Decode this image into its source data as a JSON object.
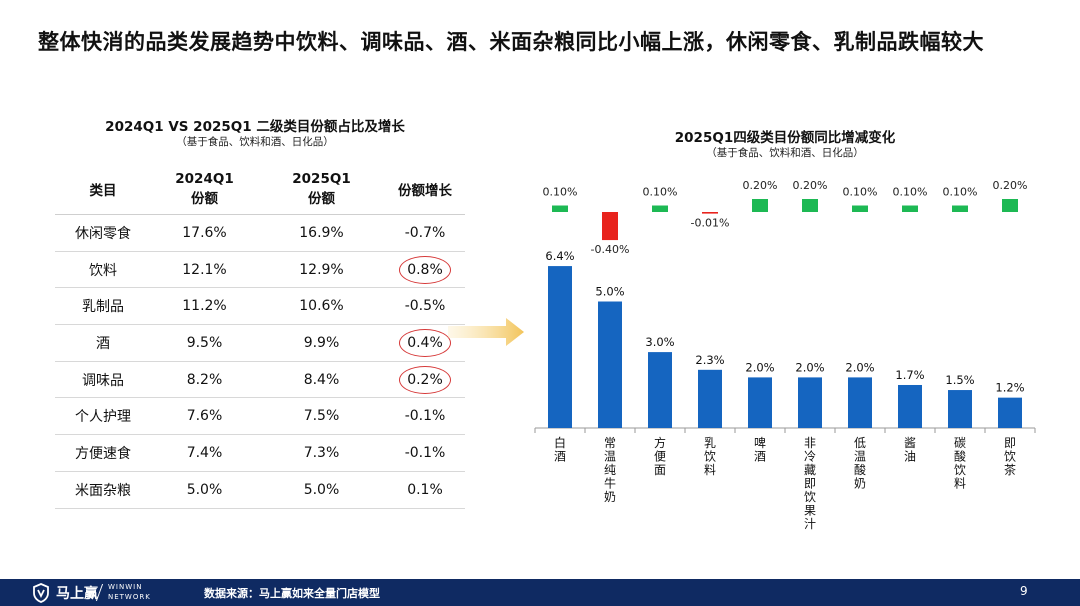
{
  "title": "整体快消的品类发展趋势中饮料、调味品、酒、米面杂粮同比小幅上涨，休闲零食、乳制品跌幅较大",
  "table": {
    "title": "2024Q1 VS 2025Q1 二级类目份额占比及增长",
    "subtitle": "（基于食品、饮料和酒、日化品）",
    "headers": [
      "类目",
      "2024Q1\n份额",
      "2025Q1\n份额",
      "份额增长"
    ],
    "rows": [
      {
        "cells": [
          "休闲零食",
          "17.6%",
          "16.9%",
          "-0.7%"
        ],
        "highlight": false
      },
      {
        "cells": [
          "饮料",
          "12.1%",
          "12.9%",
          "0.8%"
        ],
        "highlight": true
      },
      {
        "cells": [
          "乳制品",
          "11.2%",
          "10.6%",
          "-0.5%"
        ],
        "highlight": false
      },
      {
        "cells": [
          "酒",
          "9.5%",
          "9.9%",
          "0.4%"
        ],
        "highlight": true
      },
      {
        "cells": [
          "调味品",
          "8.2%",
          "8.4%",
          "0.2%"
        ],
        "highlight": true
      },
      {
        "cells": [
          "个人护理",
          "7.6%",
          "7.5%",
          "-0.1%"
        ],
        "highlight": false
      },
      {
        "cells": [
          "方便速食",
          "7.4%",
          "7.3%",
          "-0.1%"
        ],
        "highlight": false
      },
      {
        "cells": [
          "米面杂粮",
          "5.0%",
          "5.0%",
          "0.1%"
        ],
        "highlight": false
      }
    ]
  },
  "chart_data": {
    "type": "bar",
    "title": "2025Q1四级类目份额同比增减变化",
    "subtitle": "（基于食品、饮料和酒、日化品）",
    "categories": [
      "白酒",
      "常温纯牛奶",
      "方便面",
      "乳饮料",
      "啤酒",
      "非冷藏即饮果汁",
      "低温酸奶",
      "酱油",
      "碳酸饮料",
      "即饮茶"
    ],
    "series": [
      {
        "values": [
          6.4,
          5.0,
          3.0,
          2.3,
          2.0,
          2.0,
          2.0,
          1.7,
          1.5,
          1.2
        ],
        "labels": [
          "6.4%",
          "5.0%",
          "3.0%",
          "2.3%",
          "2.0%",
          "2.0%",
          "2.0%",
          "1.7%",
          "1.5%",
          "1.2%"
        ]
      },
      {
        "values": [
          0.1,
          -0.4,
          0.1,
          -0.01,
          0.2,
          0.2,
          0.1,
          0.1,
          0.1,
          0.2
        ],
        "labels": [
          "0.10%",
          "-0.40%",
          "0.10%",
          "-0.01%",
          "0.20%",
          "0.20%",
          "0.10%",
          "0.10%",
          "0.10%",
          "0.20%"
        ]
      }
    ],
    "grid": false,
    "legend": "none"
  },
  "colors": {
    "bar": "#1565c0",
    "positive": "#1db954",
    "negative": "#e8231d",
    "highlight_circle": "#d63a3a",
    "arrow": "#f2c45a",
    "footer": "#0f2a62"
  },
  "footer": {
    "logo_icon": "shield-logo-icon",
    "brand": "马上赢",
    "brand_en_1": "WINWIN",
    "brand_en_2": "NETWORK",
    "source": "数据来源：马上赢如来全量门店模型",
    "page": "9"
  }
}
